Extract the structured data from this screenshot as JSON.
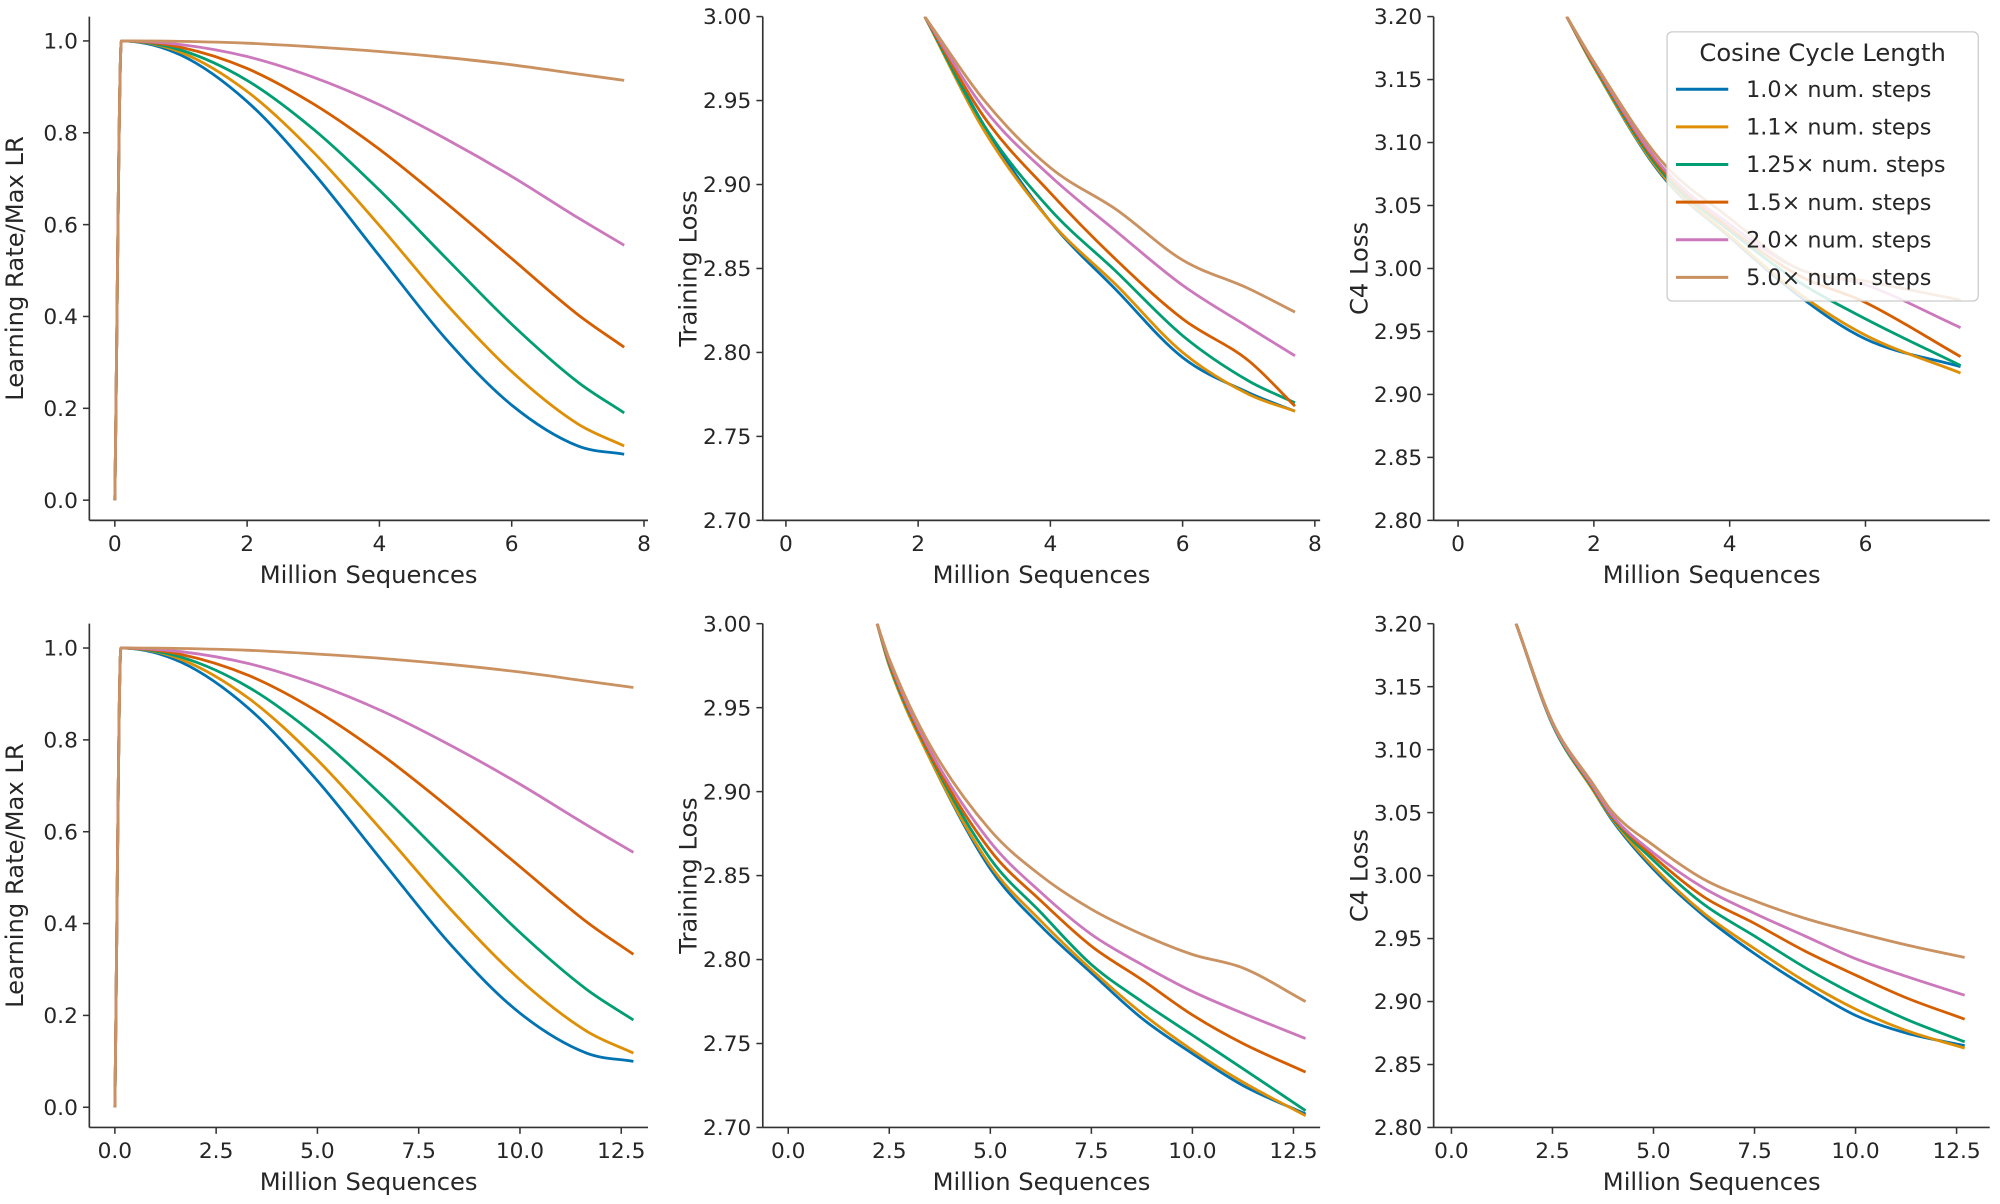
{
  "legend": {
    "title": "Cosine Cycle Length",
    "placement": "top-right of the top-right panel",
    "entries": [
      {
        "label": "1.0× num. steps",
        "color": "#0173b2"
      },
      {
        "label": "1.1× num. steps",
        "color": "#de8f05"
      },
      {
        "label": "1.25× num. steps",
        "color": "#029e73"
      },
      {
        "label": "1.5× num. steps",
        "color": "#d55e00"
      },
      {
        "label": "2.0× num. steps",
        "color": "#cc78bc"
      },
      {
        "label": "5.0× num. steps",
        "color": "#ca9161"
      }
    ]
  },
  "chart_data": [
    {
      "type": "line",
      "xlabel": "Million Sequences",
      "ylabel": "Learning Rate/Max LR",
      "xlim": [
        -0.385,
        8.06
      ],
      "ylim": [
        -0.044,
        1.053
      ],
      "grid": false,
      "xticks": [
        0,
        2,
        4,
        6,
        8
      ],
      "xtick_labels": [
        "0",
        "2",
        "4",
        "6",
        "8"
      ],
      "yticks": [
        0,
        0.2,
        0.4,
        0.6,
        0.8,
        1.0
      ],
      "ytick_labels": [
        "0.0",
        "0.2",
        "0.4",
        "0.6",
        "0.8",
        "1.0"
      ],
      "x": [
        0,
        0.1,
        1,
        2,
        3,
        4,
        5,
        6,
        7,
        7.7
      ],
      "series": [
        {
          "values": [
            0,
            1,
            0.969,
            0.868,
            0.713,
            0.532,
            0.352,
            0.207,
            0.118,
            0.1
          ]
        },
        {
          "values": [
            0,
            1,
            0.975,
            0.89,
            0.758,
            0.598,
            0.429,
            0.28,
            0.166,
            0.118
          ]
        },
        {
          "values": [
            0,
            1,
            0.98,
            0.914,
            0.808,
            0.675,
            0.528,
            0.383,
            0.257,
            0.19
          ]
        },
        {
          "values": [
            0,
            1,
            0.986,
            0.94,
            0.863,
            0.764,
            0.648,
            0.526,
            0.404,
            0.333
          ]
        },
        {
          "values": [
            0,
            1,
            0.992,
            0.966,
            0.921,
            0.861,
            0.787,
            0.705,
            0.615,
            0.555
          ]
        },
        {
          "values": [
            0,
            1,
            0.999,
            0.995,
            0.987,
            0.977,
            0.964,
            0.948,
            0.928,
            0.914
          ]
        }
      ]
    },
    {
      "type": "line",
      "xlabel": "Million Sequences",
      "ylabel": "Training Loss",
      "xlim": [
        -0.35,
        8.08
      ],
      "ylim": [
        2.7,
        3.0
      ],
      "grid": false,
      "xticks": [
        0,
        2,
        4,
        6,
        8
      ],
      "xtick_labels": [
        "0",
        "2",
        "4",
        "6",
        "8"
      ],
      "yticks": [
        2.7,
        2.75,
        2.8,
        2.85,
        2.9,
        2.95,
        3.0
      ],
      "ytick_labels": [
        "2.70",
        "2.75",
        "2.80",
        "2.85",
        "2.90",
        "2.95",
        "3.00"
      ],
      "x": [
        2.1,
        3,
        4,
        5,
        6,
        7,
        7.7
      ],
      "series": [
        {
          "values": [
            3.0,
            2.935,
            2.878,
            2.837,
            2.797,
            2.776,
            2.765
          ]
        },
        {
          "values": [
            3.0,
            2.932,
            2.878,
            2.84,
            2.8,
            2.775,
            2.765
          ]
        },
        {
          "values": [
            3.0,
            2.935,
            2.885,
            2.848,
            2.81,
            2.783,
            2.77
          ]
        },
        {
          "values": [
            3.0,
            2.94,
            2.895,
            2.855,
            2.82,
            2.795,
            2.768
          ]
        },
        {
          "values": [
            3.0,
            2.945,
            2.905,
            2.872,
            2.84,
            2.815,
            2.798
          ]
        },
        {
          "values": [
            3.0,
            2.95,
            2.91,
            2.885,
            2.855,
            2.838,
            2.824
          ]
        }
      ]
    },
    {
      "type": "line",
      "xlabel": "Million Sequences",
      "ylabel": "C4 Loss",
      "xlim": [
        -0.36,
        7.83
      ],
      "ylim": [
        2.8,
        3.2
      ],
      "grid": false,
      "xticks": [
        0,
        2,
        4,
        6
      ],
      "xtick_labels": [
        "0",
        "2",
        "4",
        "6"
      ],
      "yticks": [
        2.8,
        2.85,
        2.9,
        2.95,
        3.0,
        3.05,
        3.1,
        3.15,
        3.2
      ],
      "ytick_labels": [
        "2.80",
        "2.85",
        "2.90",
        "2.95",
        "3.00",
        "3.05",
        "3.10",
        "3.15",
        "3.20"
      ],
      "x": [
        1.6,
        2,
        3,
        4,
        5,
        6,
        7.4
      ],
      "series": [
        {
          "values": [
            3.2,
            3.16,
            3.074,
            3.025,
            2.979,
            2.944,
            2.922
          ]
        },
        {
          "values": [
            3.2,
            3.16,
            3.075,
            3.026,
            2.981,
            2.947,
            2.917
          ]
        },
        {
          "values": [
            3.2,
            3.161,
            3.077,
            3.03,
            2.99,
            2.96,
            2.923
          ]
        },
        {
          "values": [
            3.2,
            3.162,
            3.079,
            3.032,
            2.995,
            2.973,
            2.93
          ]
        },
        {
          "values": [
            3.2,
            3.163,
            3.081,
            3.035,
            3.0,
            2.987,
            2.953
          ]
        },
        {
          "values": [
            3.2,
            3.164,
            3.085,
            3.04,
            3.0,
            2.99,
            2.975
          ]
        }
      ]
    },
    {
      "type": "line",
      "xlabel": "Million Sequences",
      "ylabel": "Learning Rate/Max LR",
      "xlim": [
        -0.63,
        13.16
      ],
      "ylim": [
        -0.044,
        1.053
      ],
      "grid": false,
      "xticks": [
        0,
        2.5,
        5,
        7.5,
        10,
        12.5
      ],
      "xtick_labels": [
        "0.0",
        "2.5",
        "5.0",
        "7.5",
        "10.0",
        "12.5"
      ],
      "yticks": [
        0,
        0.2,
        0.4,
        0.6,
        0.8,
        1.0
      ],
      "ytick_labels": [
        "0.0",
        "0.2",
        "0.4",
        "0.6",
        "0.8",
        "1.0"
      ],
      "x": [
        0,
        0.15,
        1.64,
        3.31,
        4.98,
        6.64,
        8.31,
        9.97,
        11.64,
        12.8
      ],
      "series": [
        {
          "values": [
            0,
            1,
            0.969,
            0.868,
            0.713,
            0.532,
            0.352,
            0.207,
            0.118,
            0.1
          ]
        },
        {
          "values": [
            0,
            1,
            0.975,
            0.89,
            0.758,
            0.598,
            0.429,
            0.28,
            0.166,
            0.118
          ]
        },
        {
          "values": [
            0,
            1,
            0.98,
            0.914,
            0.808,
            0.675,
            0.528,
            0.383,
            0.257,
            0.19
          ]
        },
        {
          "values": [
            0,
            1,
            0.986,
            0.94,
            0.863,
            0.764,
            0.648,
            0.526,
            0.404,
            0.333
          ]
        },
        {
          "values": [
            0,
            1,
            0.992,
            0.966,
            0.921,
            0.861,
            0.787,
            0.705,
            0.615,
            0.555
          ]
        },
        {
          "values": [
            0,
            1,
            0.999,
            0.995,
            0.987,
            0.977,
            0.964,
            0.948,
            0.928,
            0.914
          ]
        }
      ]
    },
    {
      "type": "line",
      "xlabel": "Million Sequences",
      "ylabel": "Training Loss",
      "xlim": [
        -0.63,
        13.16
      ],
      "ylim": [
        2.7,
        3.0
      ],
      "grid": false,
      "xticks": [
        0,
        2.5,
        5,
        7.5,
        10,
        12.5
      ],
      "xtick_labels": [
        "0.0",
        "2.5",
        "5.0",
        "7.5",
        "10.0",
        "12.5"
      ],
      "yticks": [
        2.7,
        2.75,
        2.8,
        2.85,
        2.9,
        2.95,
        3.0
      ],
      "ytick_labels": [
        "2.70",
        "2.75",
        "2.80",
        "2.85",
        "2.90",
        "2.95",
        "3.00"
      ],
      "x": [
        2.2,
        2.5,
        3.5,
        5,
        6.25,
        7.5,
        8.75,
        10,
        11.25,
        12.8
      ],
      "series": [
        {
          "values": [
            3.0,
            2.975,
            2.92,
            2.854,
            2.82,
            2.792,
            2.765,
            2.744,
            2.725,
            2.708
          ]
        },
        {
          "values": [
            3.0,
            2.975,
            2.92,
            2.856,
            2.823,
            2.794,
            2.768,
            2.746,
            2.727,
            2.707
          ]
        },
        {
          "values": [
            3.0,
            2.976,
            2.922,
            2.86,
            2.828,
            2.797,
            2.775,
            2.755,
            2.735,
            2.71
          ]
        },
        {
          "values": [
            3.0,
            2.977,
            2.923,
            2.865,
            2.835,
            2.808,
            2.788,
            2.767,
            2.75,
            2.733
          ]
        },
        {
          "values": [
            3.0,
            2.978,
            2.925,
            2.87,
            2.84,
            2.815,
            2.797,
            2.781,
            2.768,
            2.753
          ]
        },
        {
          "values": [
            3.0,
            2.979,
            2.928,
            2.877,
            2.85,
            2.83,
            2.815,
            2.803,
            2.795,
            2.775
          ]
        }
      ]
    },
    {
      "type": "line",
      "xlabel": "Million Sequences",
      "ylabel": "C4 Loss",
      "xlim": [
        -0.44,
        13.32
      ],
      "ylim": [
        2.8,
        3.2
      ],
      "grid": false,
      "xticks": [
        0,
        2.5,
        5,
        7.5,
        10,
        12.5
      ],
      "xtick_labels": [
        "0.0",
        "2.5",
        "5.0",
        "7.5",
        "10.0",
        "12.5"
      ],
      "yticks": [
        2.8,
        2.85,
        2.9,
        2.95,
        3.0,
        3.05,
        3.1,
        3.15,
        3.2
      ],
      "ytick_labels": [
        "2.80",
        "2.85",
        "2.90",
        "2.95",
        "3.00",
        "3.05",
        "3.10",
        "3.15",
        "3.20"
      ],
      "x": [
        1.6,
        2.5,
        3.5,
        4,
        5,
        6.25,
        7.5,
        8.75,
        10,
        11.25,
        12.7
      ],
      "series": [
        {
          "values": [
            3.2,
            3.12,
            3.068,
            3.043,
            3.005,
            2.968,
            2.938,
            2.912,
            2.889,
            2.875,
            2.865
          ]
        },
        {
          "values": [
            3.2,
            3.12,
            3.068,
            3.044,
            3.007,
            2.97,
            2.942,
            2.916,
            2.894,
            2.877,
            2.863
          ]
        },
        {
          "values": [
            3.2,
            3.12,
            3.069,
            3.045,
            3.012,
            2.977,
            2.952,
            2.927,
            2.905,
            2.886,
            2.868
          ]
        },
        {
          "values": [
            3.2,
            3.121,
            3.07,
            3.046,
            3.015,
            2.983,
            2.962,
            2.94,
            2.921,
            2.903,
            2.886
          ]
        },
        {
          "values": [
            3.2,
            3.121,
            3.071,
            3.047,
            3.018,
            2.99,
            2.97,
            2.952,
            2.934,
            2.92,
            2.905
          ]
        },
        {
          "values": [
            3.2,
            3.122,
            3.073,
            3.05,
            3.024,
            2.997,
            2.98,
            2.966,
            2.955,
            2.945,
            2.935
          ]
        }
      ]
    }
  ]
}
